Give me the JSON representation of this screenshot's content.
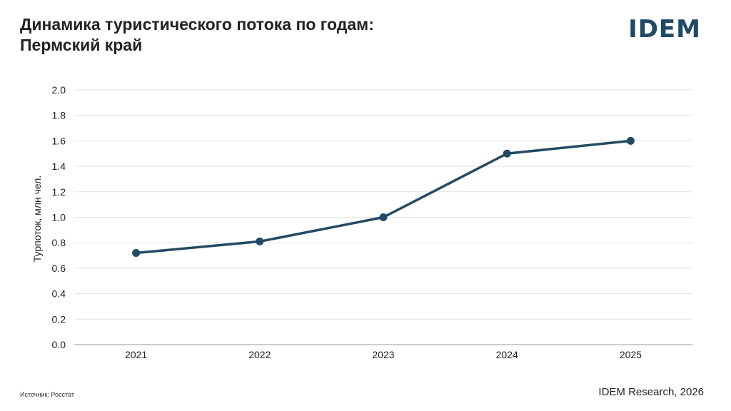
{
  "header": {
    "title_line1": "Динамика туристического потока по годам:",
    "title_line2": "Пермский край",
    "logo": "IDEM"
  },
  "footer": {
    "source": "Источник: Росстат",
    "credit": "IDEM Research, 2026"
  },
  "colors": {
    "line": "#244a63",
    "grid": "#e3e3e3",
    "logo": "#1f4a66"
  },
  "chart_data": {
    "type": "line",
    "title": "Динамика туристического потока по годам: Пермский край",
    "xlabel": "",
    "ylabel": "Турпоток, млн чел.",
    "categories": [
      "2021",
      "2022",
      "2023",
      "2024",
      "2025"
    ],
    "series": [
      {
        "values": [
          0.72,
          0.81,
          1.0,
          1.5,
          1.6
        ]
      }
    ],
    "ylim": [
      0,
      2.0
    ],
    "yticks": [
      "0.0",
      "0.2",
      "0.4",
      "0.6",
      "0.8",
      "1.0",
      "1.2",
      "1.4",
      "1.6",
      "1.8",
      "2.0"
    ],
    "grid": true,
    "legend": "none"
  }
}
